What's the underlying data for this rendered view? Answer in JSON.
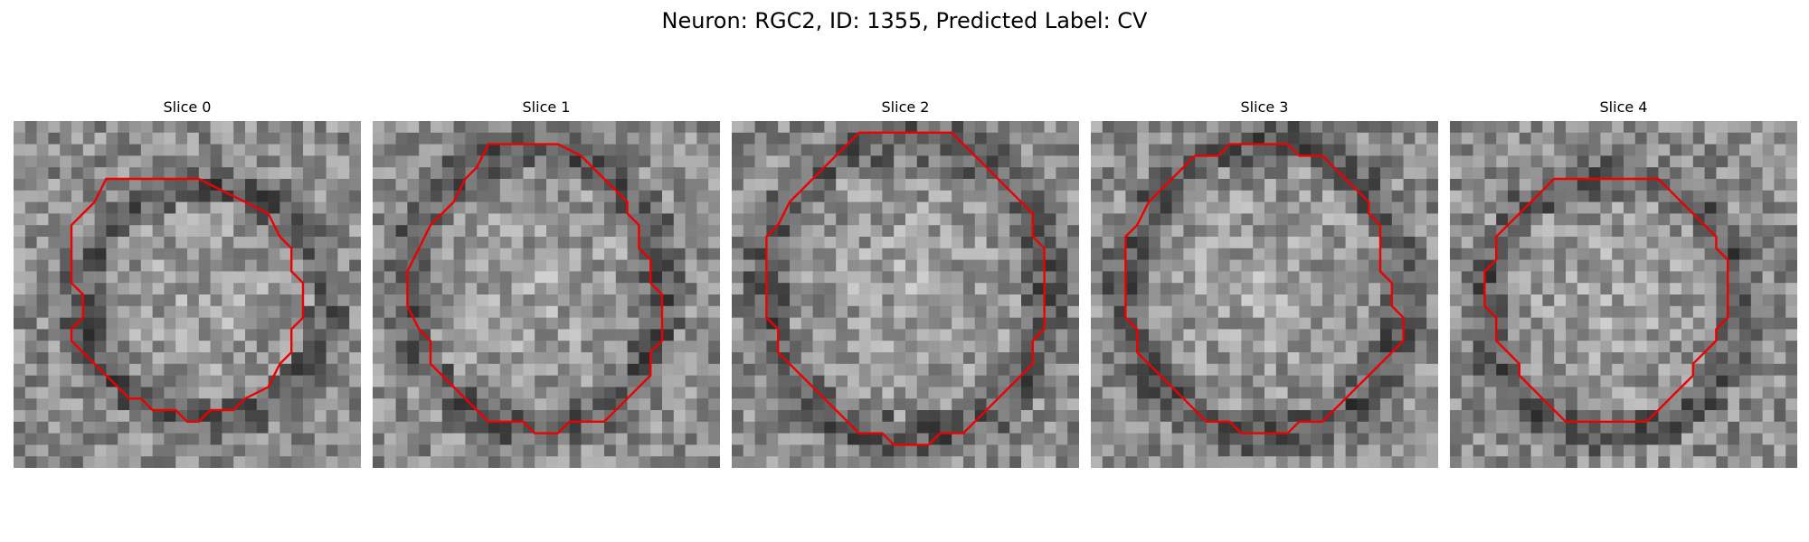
{
  "figure": {
    "title": "Neuron: RGC2, ID: 1355, Predicted Label: CV"
  },
  "colors": {
    "contour": "#ee0000",
    "background": "#ffffff",
    "text": "#000000"
  },
  "slices": [
    {
      "title": "Slice 0",
      "contour_grid": [
        [
          8,
          5
        ],
        [
          16,
          5
        ],
        [
          20,
          7
        ],
        [
          22,
          8
        ],
        [
          23,
          10
        ],
        [
          24,
          11
        ],
        [
          24,
          13
        ],
        [
          25,
          14
        ],
        [
          25,
          17
        ],
        [
          24,
          18
        ],
        [
          24,
          20
        ],
        [
          23,
          21
        ],
        [
          22,
          23
        ],
        [
          20,
          24
        ],
        [
          19,
          25
        ],
        [
          17,
          25
        ],
        [
          16,
          26
        ],
        [
          15,
          26
        ],
        [
          14,
          25
        ],
        [
          12,
          25
        ],
        [
          11,
          24
        ],
        [
          10,
          24
        ],
        [
          9,
          23
        ],
        [
          8,
          22
        ],
        [
          7,
          21
        ],
        [
          6,
          20
        ],
        [
          5,
          19
        ],
        [
          5,
          18
        ],
        [
          6,
          17
        ],
        [
          6,
          15
        ],
        [
          5,
          14
        ],
        [
          5,
          9
        ],
        [
          6,
          8
        ],
        [
          7,
          7
        ]
      ],
      "dark_ring": {
        "cx": 16.5,
        "cy": 15.8,
        "rx": 11.0,
        "ry": 10.5
      }
    },
    {
      "title": "Slice 1",
      "contour_grid": [
        [
          10,
          2
        ],
        [
          16,
          2
        ],
        [
          18,
          3
        ],
        [
          19,
          4
        ],
        [
          20,
          5
        ],
        [
          21,
          6
        ],
        [
          22,
          7
        ],
        [
          22,
          8
        ],
        [
          23,
          9
        ],
        [
          23,
          11
        ],
        [
          24,
          12
        ],
        [
          24,
          14
        ],
        [
          25,
          15
        ],
        [
          25,
          19
        ],
        [
          24,
          20
        ],
        [
          24,
          22
        ],
        [
          23,
          23
        ],
        [
          22,
          24
        ],
        [
          21,
          25
        ],
        [
          20,
          26
        ],
        [
          17,
          26
        ],
        [
          16,
          27
        ],
        [
          14,
          27
        ],
        [
          13,
          26
        ],
        [
          10,
          26
        ],
        [
          9,
          25
        ],
        [
          8,
          24
        ],
        [
          7,
          23
        ],
        [
          6,
          22
        ],
        [
          5,
          21
        ],
        [
          5,
          19
        ],
        [
          4,
          18
        ],
        [
          3,
          16
        ],
        [
          3,
          13
        ],
        [
          4,
          11
        ],
        [
          5,
          9
        ],
        [
          6,
          8
        ],
        [
          7,
          7
        ],
        [
          8,
          5
        ],
        [
          9,
          4
        ]
      ],
      "dark_ring": {
        "cx": 14.0,
        "cy": 14.5,
        "rx": 11.5,
        "ry": 12.5
      }
    },
    {
      "title": "Slice 2",
      "contour_grid": [
        [
          11,
          1
        ],
        [
          19,
          1
        ],
        [
          20,
          2
        ],
        [
          21,
          3
        ],
        [
          22,
          4
        ],
        [
          23,
          5
        ],
        [
          24,
          6
        ],
        [
          25,
          7
        ],
        [
          26,
          8
        ],
        [
          26,
          10
        ],
        [
          27,
          11
        ],
        [
          27,
          16
        ],
        [
          27,
          18
        ],
        [
          26,
          19
        ],
        [
          26,
          21
        ],
        [
          25,
          22
        ],
        [
          24,
          23
        ],
        [
          23,
          24
        ],
        [
          22,
          25
        ],
        [
          21,
          26
        ],
        [
          20,
          27
        ],
        [
          18,
          27
        ],
        [
          17,
          28
        ],
        [
          14,
          28
        ],
        [
          13,
          27
        ],
        [
          11,
          27
        ],
        [
          10,
          26
        ],
        [
          9,
          25
        ],
        [
          8,
          24
        ],
        [
          7,
          23
        ],
        [
          6,
          22
        ],
        [
          5,
          21
        ],
        [
          4,
          20
        ],
        [
          4,
          18
        ],
        [
          3,
          17
        ],
        [
          3,
          10
        ],
        [
          4,
          9
        ],
        [
          5,
          7
        ],
        [
          6,
          6
        ],
        [
          7,
          5
        ],
        [
          8,
          4
        ],
        [
          9,
          3
        ],
        [
          10,
          2
        ]
      ],
      "dark_ring": {
        "cx": 15.0,
        "cy": 14.5,
        "rx": 12.5,
        "ry": 13.5
      }
    },
    {
      "title": "Slice 3",
      "contour_grid": [
        [
          12,
          2
        ],
        [
          17,
          2
        ],
        [
          18,
          3
        ],
        [
          20,
          3
        ],
        [
          21,
          4
        ],
        [
          22,
          5
        ],
        [
          23,
          6
        ],
        [
          24,
          7
        ],
        [
          24,
          8
        ],
        [
          25,
          9
        ],
        [
          25,
          13
        ],
        [
          26,
          14
        ],
        [
          26,
          16
        ],
        [
          27,
          17
        ],
        [
          27,
          19
        ],
        [
          26,
          20
        ],
        [
          25,
          21
        ],
        [
          24,
          22
        ],
        [
          23,
          23
        ],
        [
          22,
          24
        ],
        [
          21,
          25
        ],
        [
          20,
          26
        ],
        [
          18,
          26
        ],
        [
          17,
          27
        ],
        [
          13,
          27
        ],
        [
          12,
          26
        ],
        [
          10,
          26
        ],
        [
          9,
          25
        ],
        [
          8,
          24
        ],
        [
          7,
          23
        ],
        [
          6,
          22
        ],
        [
          5,
          21
        ],
        [
          4,
          20
        ],
        [
          4,
          18
        ],
        [
          3,
          17
        ],
        [
          3,
          10
        ],
        [
          4,
          9
        ],
        [
          5,
          7
        ],
        [
          6,
          6
        ],
        [
          7,
          5
        ],
        [
          8,
          4
        ],
        [
          9,
          3
        ],
        [
          11,
          3
        ]
      ],
      "dark_ring": {
        "cx": 15.0,
        "cy": 14.5,
        "rx": 12.5,
        "ry": 13.0
      }
    },
    {
      "title": "Slice 4",
      "contour_grid": [
        [
          12,
          5
        ],
        [
          18,
          5
        ],
        [
          19,
          6
        ],
        [
          20,
          7
        ],
        [
          21,
          8
        ],
        [
          22,
          9
        ],
        [
          23,
          10
        ],
        [
          23,
          11
        ],
        [
          24,
          12
        ],
        [
          24,
          17
        ],
        [
          23,
          18
        ],
        [
          23,
          19
        ],
        [
          22,
          20
        ],
        [
          21,
          21
        ],
        [
          21,
          22
        ],
        [
          20,
          23
        ],
        [
          19,
          24
        ],
        [
          18,
          25
        ],
        [
          17,
          26
        ],
        [
          10,
          26
        ],
        [
          9,
          25
        ],
        [
          8,
          24
        ],
        [
          7,
          23
        ],
        [
          6,
          22
        ],
        [
          6,
          21
        ],
        [
          5,
          20
        ],
        [
          4,
          19
        ],
        [
          4,
          17
        ],
        [
          3,
          16
        ],
        [
          3,
          13
        ],
        [
          4,
          12
        ],
        [
          4,
          10
        ],
        [
          5,
          9
        ],
        [
          6,
          8
        ],
        [
          7,
          7
        ],
        [
          8,
          6
        ],
        [
          9,
          5
        ]
      ],
      "dark_ring": {
        "cx": 14.0,
        "cy": 16.0,
        "rx": 11.5,
        "ry": 11.5
      }
    }
  ]
}
